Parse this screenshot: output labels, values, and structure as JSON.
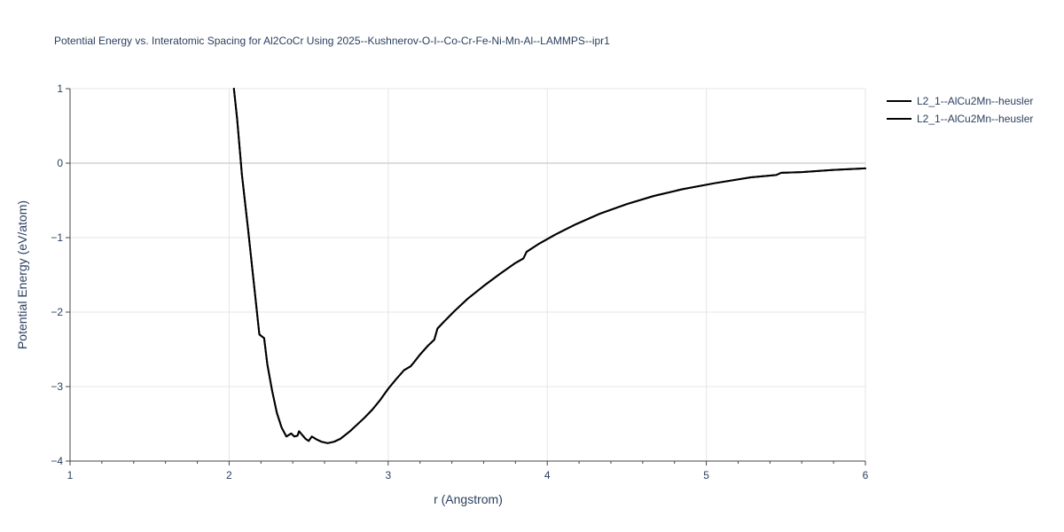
{
  "chart_data": {
    "type": "line",
    "title": "Potential Energy vs. Interatomic Spacing for Al2CoCr Using 2025--Kushnerov-O-I--Co-Cr-Fe-Ni-Mn-Al--LAMMPS--ipr1",
    "xlabel": "r (Angstrom)",
    "ylabel": "Potential Energy (eV/atom)",
    "xlim": [
      1,
      6
    ],
    "ylim": [
      -4,
      1
    ],
    "x_ticks": [
      1,
      2,
      3,
      4,
      5,
      6
    ],
    "y_ticks": [
      1,
      0,
      -1,
      -2,
      -3,
      -4
    ],
    "grid": true,
    "legend_position": "top-right",
    "line_color": "#000000",
    "series": [
      {
        "name": "L2_1--AlCu2Mn--heusler",
        "x": [
          2.03,
          2.05,
          2.08,
          2.12,
          2.16,
          2.19,
          2.22,
          2.24,
          2.27,
          2.3,
          2.33,
          2.36,
          2.39,
          2.41,
          2.43,
          2.44,
          2.46,
          2.48,
          2.5,
          2.52,
          2.55,
          2.58,
          2.62,
          2.66,
          2.7,
          2.73,
          2.76,
          2.8,
          2.85,
          2.9,
          2.95,
          3.0,
          3.05,
          3.1,
          3.14,
          3.16,
          3.2,
          3.25,
          3.29,
          3.31,
          3.35,
          3.42,
          3.5,
          3.6,
          3.7,
          3.8,
          3.85,
          3.87,
          3.95,
          4.05,
          4.18,
          4.33,
          4.5,
          4.67,
          4.85,
          5.05,
          5.28,
          5.44,
          5.47,
          5.6,
          5.8,
          6.0
        ],
        "y": [
          1.0,
          0.6,
          -0.15,
          -0.9,
          -1.7,
          -2.3,
          -2.35,
          -2.7,
          -3.05,
          -3.35,
          -3.55,
          -3.67,
          -3.63,
          -3.67,
          -3.66,
          -3.6,
          -3.65,
          -3.7,
          -3.73,
          -3.67,
          -3.71,
          -3.74,
          -3.76,
          -3.74,
          -3.7,
          -3.65,
          -3.6,
          -3.52,
          -3.42,
          -3.31,
          -3.18,
          -3.03,
          -2.9,
          -2.78,
          -2.73,
          -2.68,
          -2.57,
          -2.45,
          -2.37,
          -2.22,
          -2.13,
          -1.98,
          -1.82,
          -1.65,
          -1.49,
          -1.34,
          -1.28,
          -1.19,
          -1.08,
          -0.96,
          -0.82,
          -0.68,
          -0.55,
          -0.44,
          -0.35,
          -0.27,
          -0.19,
          -0.16,
          -0.13,
          -0.12,
          -0.09,
          -0.07
        ]
      },
      {
        "name": "L2_1--AlCu2Mn--heusler",
        "x": [
          2.03,
          2.05,
          2.08,
          2.12,
          2.16,
          2.19,
          2.22,
          2.24,
          2.27,
          2.3,
          2.33,
          2.36,
          2.39,
          2.41,
          2.43,
          2.44,
          2.46,
          2.48,
          2.5,
          2.52,
          2.55,
          2.58,
          2.62,
          2.66,
          2.7,
          2.73,
          2.76,
          2.8,
          2.85,
          2.9,
          2.95,
          3.0,
          3.05,
          3.1,
          3.14,
          3.16,
          3.2,
          3.25,
          3.29,
          3.31,
          3.35,
          3.42,
          3.5,
          3.6,
          3.7,
          3.8,
          3.85,
          3.87,
          3.95,
          4.05,
          4.18,
          4.33,
          4.5,
          4.67,
          4.85,
          5.05,
          5.28,
          5.44,
          5.47,
          5.6,
          5.8,
          6.0
        ],
        "y": [
          1.0,
          0.6,
          -0.15,
          -0.9,
          -1.7,
          -2.3,
          -2.35,
          -2.7,
          -3.05,
          -3.35,
          -3.55,
          -3.67,
          -3.63,
          -3.67,
          -3.66,
          -3.6,
          -3.65,
          -3.7,
          -3.73,
          -3.67,
          -3.71,
          -3.74,
          -3.76,
          -3.74,
          -3.7,
          -3.65,
          -3.6,
          -3.52,
          -3.42,
          -3.31,
          -3.18,
          -3.03,
          -2.9,
          -2.78,
          -2.73,
          -2.68,
          -2.57,
          -2.45,
          -2.37,
          -2.22,
          -2.13,
          -1.98,
          -1.82,
          -1.65,
          -1.49,
          -1.34,
          -1.28,
          -1.19,
          -1.08,
          -0.96,
          -0.82,
          -0.68,
          -0.55,
          -0.44,
          -0.35,
          -0.27,
          -0.19,
          -0.16,
          -0.13,
          -0.12,
          -0.09,
          -0.07
        ]
      }
    ]
  }
}
